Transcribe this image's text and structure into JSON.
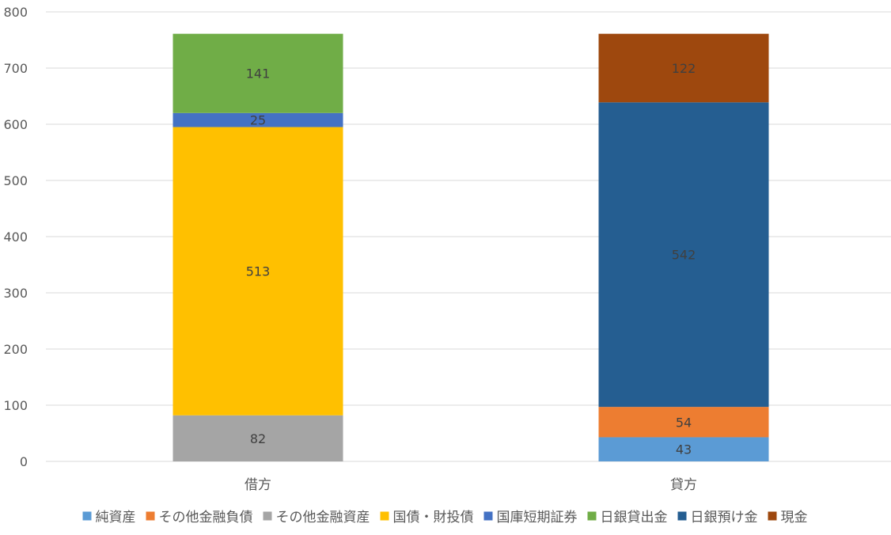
{
  "chart_data": {
    "type": "bar",
    "stacked": true,
    "categories": [
      "借方",
      "貸方"
    ],
    "ylim": [
      0,
      800
    ],
    "yticks": [
      0,
      100,
      200,
      300,
      400,
      500,
      600,
      700,
      800
    ],
    "grid": true,
    "legend_position": "bottom",
    "series": [
      {
        "name": "純資産",
        "color": "#5B9BD5",
        "values": [
          null,
          43
        ]
      },
      {
        "name": "その他金融負債",
        "color": "#ED7D31",
        "values": [
          null,
          54
        ]
      },
      {
        "name": "その他金融資産",
        "color": "#A5A5A5",
        "values": [
          82,
          null
        ]
      },
      {
        "name": "国債・財投債",
        "color": "#FFC000",
        "values": [
          513,
          null
        ]
      },
      {
        "name": "国庫短期証券",
        "color": "#4472C4",
        "values": [
          25,
          null
        ]
      },
      {
        "name": "日銀貸出金",
        "color": "#70AD47",
        "values": [
          141,
          null
        ]
      },
      {
        "name": "日銀預け金",
        "color": "#255E91",
        "values": [
          null,
          542
        ]
      },
      {
        "name": "現金",
        "color": "#9E480E",
        "values": [
          null,
          122
        ]
      }
    ]
  }
}
